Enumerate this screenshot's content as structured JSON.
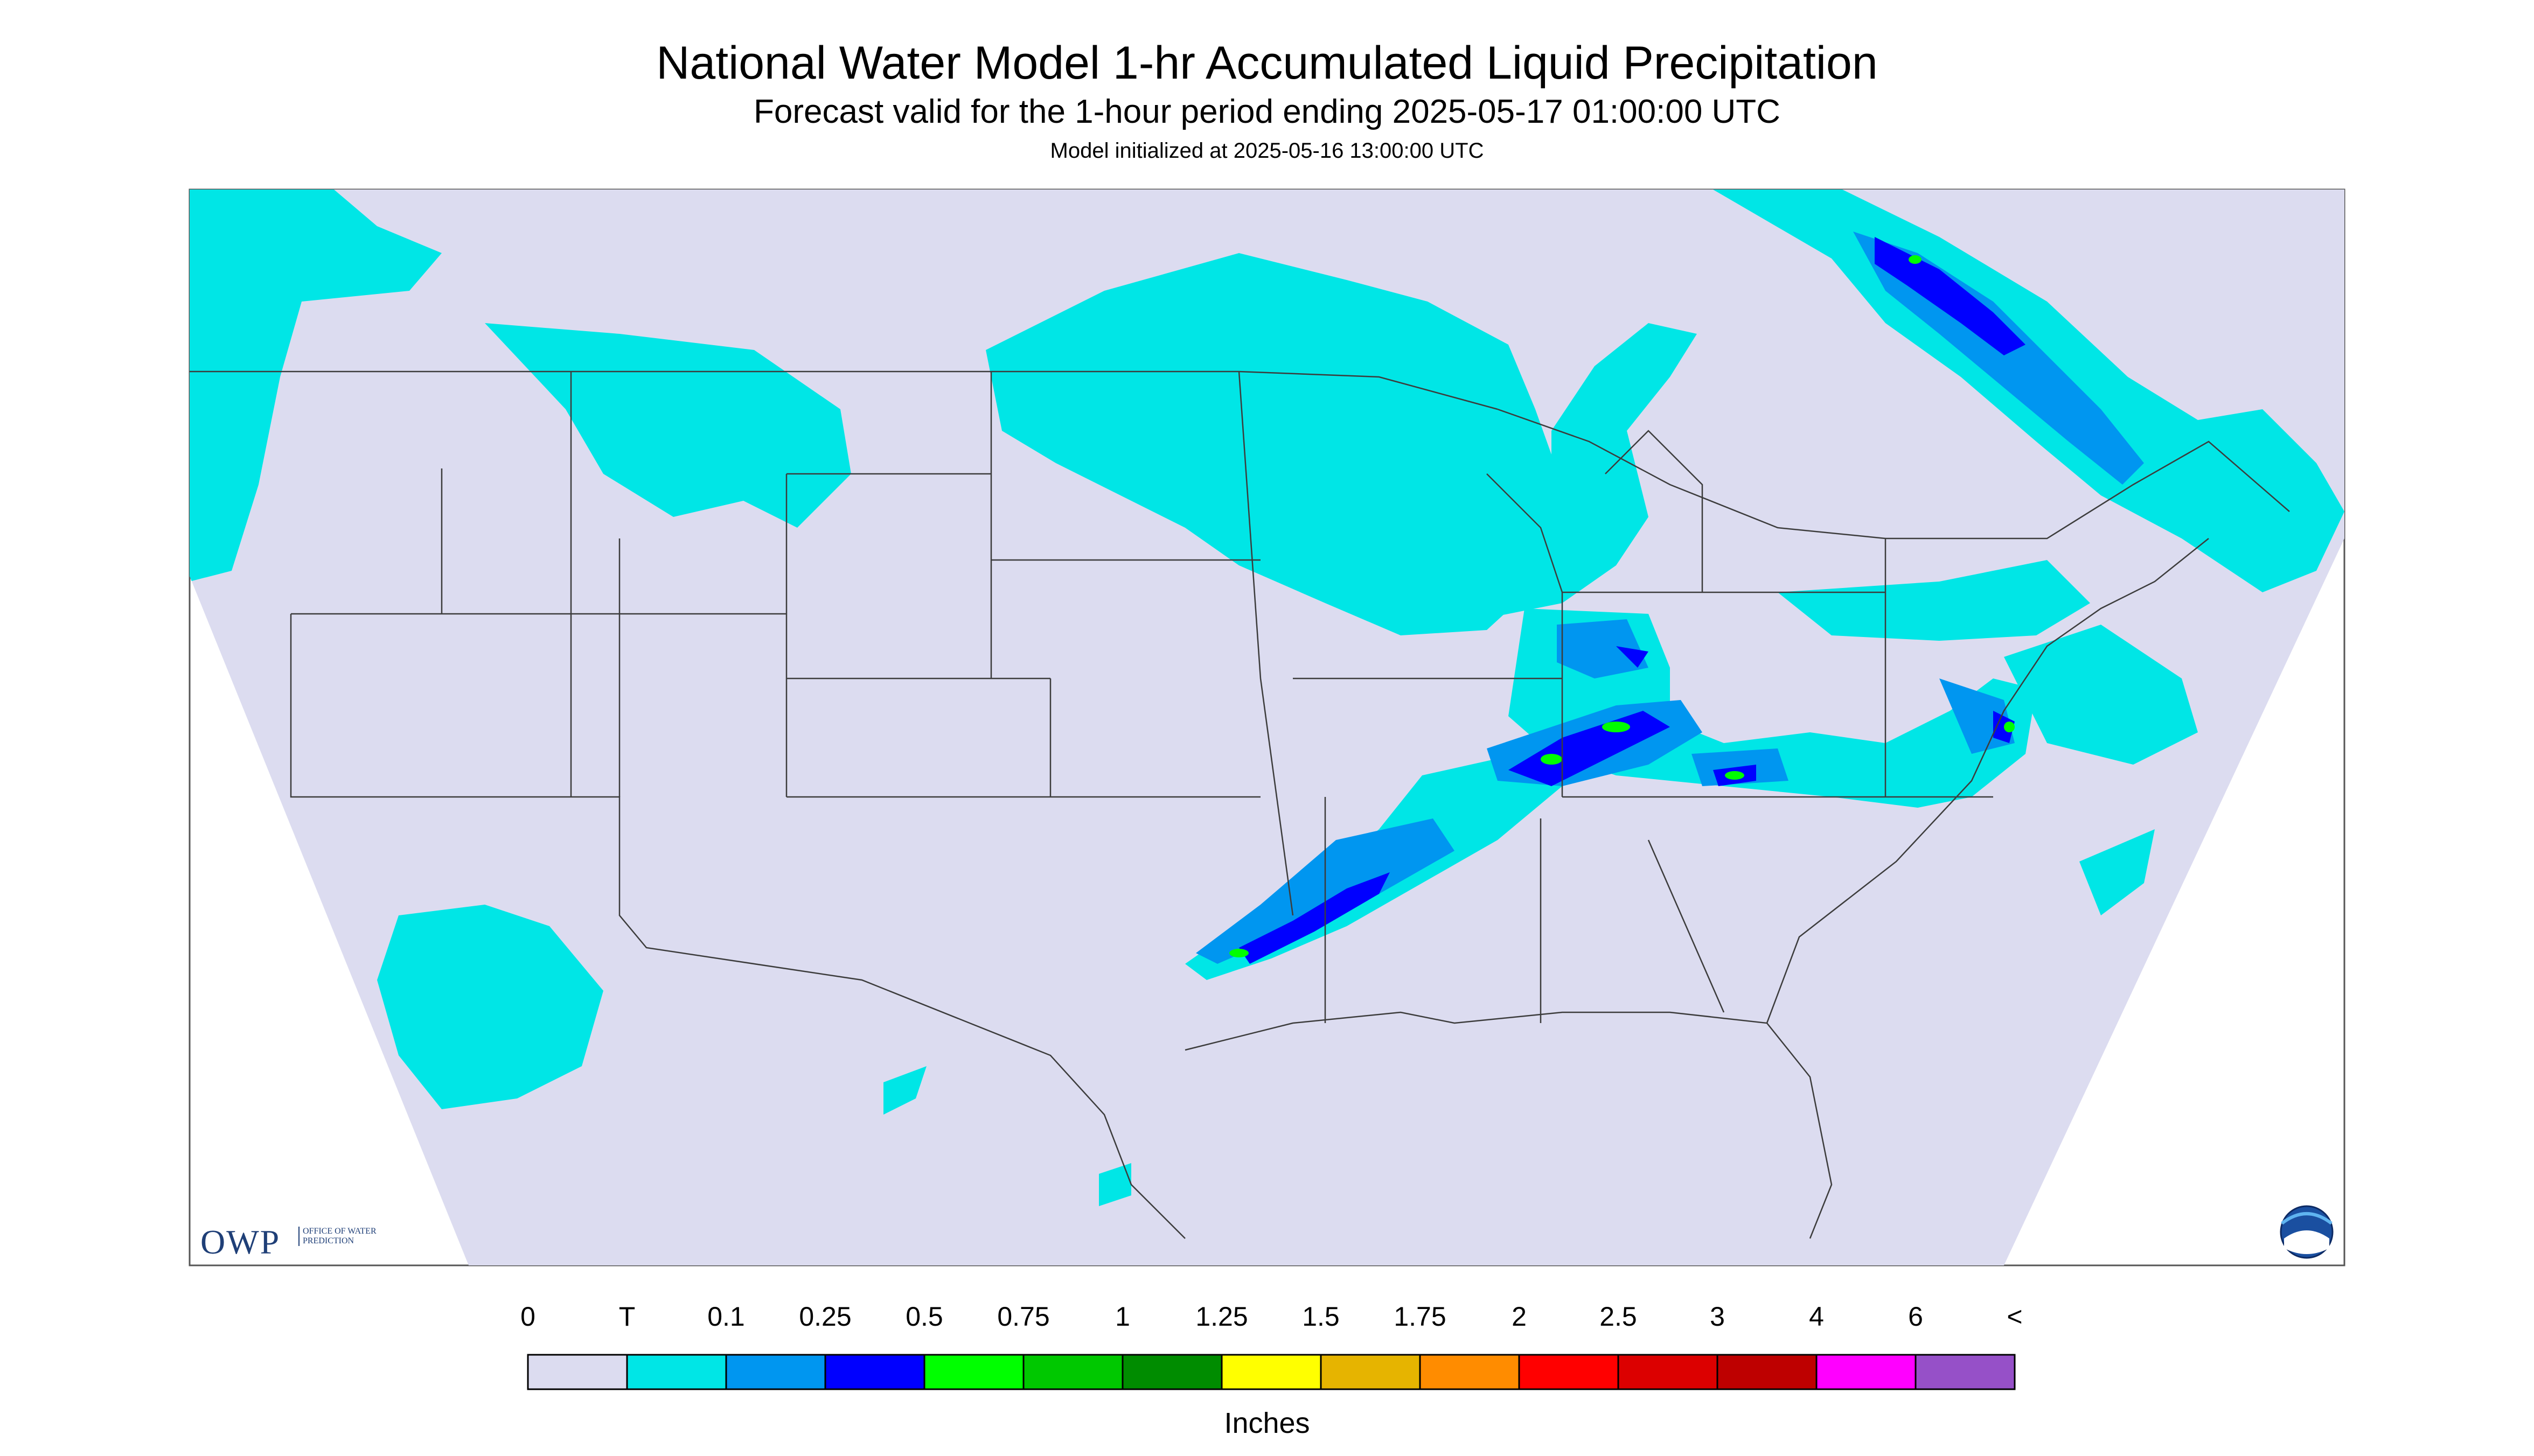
{
  "header": {
    "title": "National Water Model 1-hr Accumulated Liquid Precipitation",
    "subtitle": "Forecast valid for the 1-hour period ending 2025-05-17 01:00:00 UTC",
    "init": "Model initialized at 2025-05-16 13:00:00 UTC"
  },
  "logos": {
    "owp_mark": "OWP",
    "owp_text": "OFFICE OF WATER PREDICTION",
    "noaa": "noaa-logo"
  },
  "legend": {
    "labels": [
      "0",
      "T",
      "0.1",
      "0.25",
      "0.5",
      "0.75",
      "1",
      "1.25",
      "1.5",
      "1.75",
      "2",
      "2.5",
      "3",
      "4",
      "6",
      "<"
    ],
    "colors": [
      "#dcdcf0",
      "#00e6e6",
      "#0096f0",
      "#0000ff",
      "#00ff00",
      "#00c800",
      "#008c00",
      "#ffff00",
      "#e6b400",
      "#ff8c00",
      "#ff0000",
      "#dc0000",
      "#be0000",
      "#ff00ff",
      "#9650c8"
    ],
    "units": "Inches"
  },
  "map": {
    "background": "#dcdcf0",
    "outside": "#ffffff",
    "region": "CONUS"
  }
}
